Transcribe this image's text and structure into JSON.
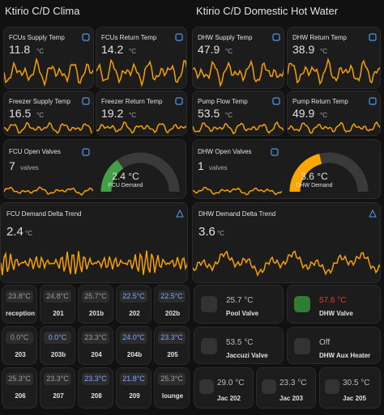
{
  "header": {
    "left_title": "Ktirio C/D Clima",
    "right_title": "Ktirio C/D Domestic Hot Water"
  },
  "sensors": [
    {
      "label": "FCUs Supply Temp",
      "value": "11.8",
      "unit": "°C"
    },
    {
      "label": "FCUs Return Temp",
      "value": "14.2",
      "unit": "°C"
    },
    {
      "label": "DHW Supply Temp",
      "value": "47.9",
      "unit": "°C"
    },
    {
      "label": "DHW Return Temp",
      "value": "38.9",
      "unit": "°C"
    },
    {
      "label": "Freezer Supply Temp",
      "value": "16.5",
      "unit": "°C"
    },
    {
      "label": "Freezer Return Temp",
      "value": "19.2",
      "unit": "°C"
    },
    {
      "label": "Pump Flow Temp",
      "value": "53.5",
      "unit": "°C"
    },
    {
      "label": "Pump Return Temp",
      "value": "49.9",
      "unit": "°C"
    }
  ],
  "valves": [
    {
      "label": "FCU Open Valves",
      "value": "7",
      "unit": "valves",
      "gauge_value": "2.4 °C",
      "gauge_label": "FCU Demand",
      "color": "#43a047"
    },
    {
      "label": "DHW Open Valves",
      "value": "1",
      "unit": "valves",
      "gauge_value": "3.6 °C",
      "gauge_label": "DHW Demand",
      "color": "#ffa600"
    }
  ],
  "trends": [
    {
      "label": "FCU Demand Delta Trend",
      "value": "2.4",
      "unit": "°C"
    },
    {
      "label": "DHW Demand Delta Trend",
      "value": "3.6",
      "unit": "°C"
    }
  ],
  "rooms": [
    {
      "value": "23.8°C",
      "name": "reception",
      "color": "#9e9e9e"
    },
    {
      "value": "24.8°C",
      "name": "201",
      "color": "#9e9e9e"
    },
    {
      "value": "25.7°C",
      "name": "201b",
      "color": "#9e9e9e"
    },
    {
      "value": "22.5°C",
      "name": "202",
      "color": "#7fa8ff"
    },
    {
      "value": "22.5°C",
      "name": "202b",
      "color": "#7fa8ff"
    },
    {
      "value": "0.0°C",
      "name": "203",
      "color": "#9e9e9e"
    },
    {
      "value": "0.0°C",
      "name": "203b",
      "color": "#7fa8ff"
    },
    {
      "value": "23.3°C",
      "name": "204",
      "color": "#9e9e9e"
    },
    {
      "value": "24.0°C",
      "name": "204b",
      "color": "#7fa8ff"
    },
    {
      "value": "23.3°C",
      "name": "205",
      "color": "#7fa8ff"
    },
    {
      "value": "25.3°C",
      "name": "206",
      "color": "#9e9e9e"
    },
    {
      "value": "23.3°C",
      "name": "207",
      "color": "#9e9e9e"
    },
    {
      "value": "23.3°C",
      "name": "208",
      "color": "#7fa8ff"
    },
    {
      "value": "21.8°C",
      "name": "209",
      "color": "#7fa8ff"
    },
    {
      "value": "25.3°C",
      "name": "lounge",
      "color": "#9e9e9e"
    }
  ],
  "controls": [
    {
      "value": "25.7 °C",
      "name": "Pool Valve",
      "color": "#bdbdbd"
    },
    {
      "value": "57.6 °C",
      "name": "DHW Valve",
      "color": "#ff3030"
    },
    {
      "value": "53.5 °C",
      "name": "Jaccuzi Valve",
      "color": "#bdbdbd"
    },
    {
      "value": "Off",
      "name": "DHW Aux Heater",
      "color": "#bdbdbd"
    }
  ],
  "jacuzzis": [
    {
      "value": "29.0 °C",
      "name": "Jac 202"
    },
    {
      "value": "23.3 °C",
      "name": "Jac 203"
    },
    {
      "value": "30.5 °C",
      "name": "Jac 205"
    }
  ]
}
